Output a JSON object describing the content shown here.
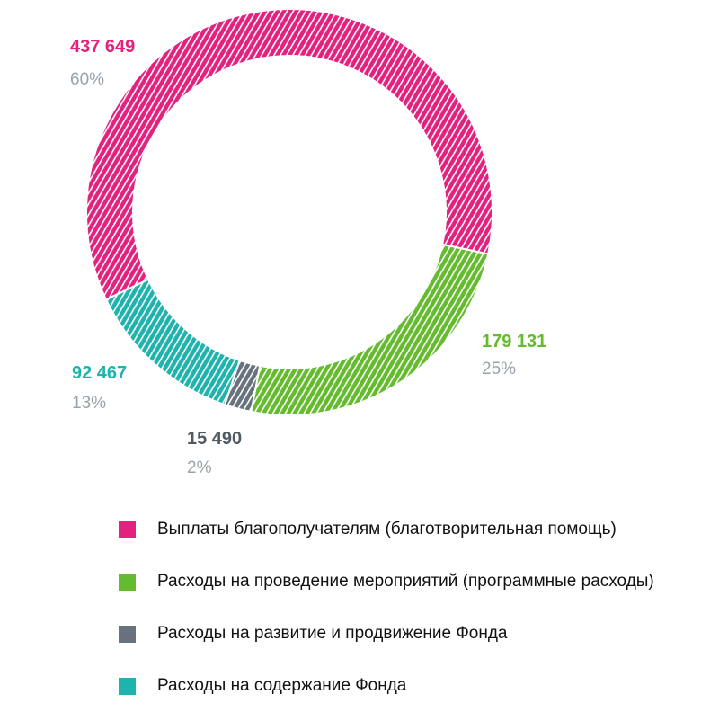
{
  "chart_data": {
    "type": "pie",
    "style": "donut",
    "hatched": true,
    "series": [
      {
        "name": "Выплаты благополучателям (благотворительная помощь)",
        "value": 437649,
        "value_label": "437 649",
        "percent_label": "60%",
        "color": "#e3217f"
      },
      {
        "name": "Расходы на проведение мероприятий (программные расходы)",
        "value": 179131,
        "value_label": "179 131",
        "percent_label": "25%",
        "color": "#64bb2e"
      },
      {
        "name": "Расходы на развитие и продвижение Фонда",
        "value": 15490,
        "value_label": "15 490",
        "percent_label": "2%",
        "color": "#67727c"
      },
      {
        "name": "Расходы на содержание Фонда",
        "value": 92467,
        "value_label": "92 467",
        "percent_label": "13%",
        "color": "#1fb3ad"
      }
    ],
    "legend_position": "bottom"
  }
}
